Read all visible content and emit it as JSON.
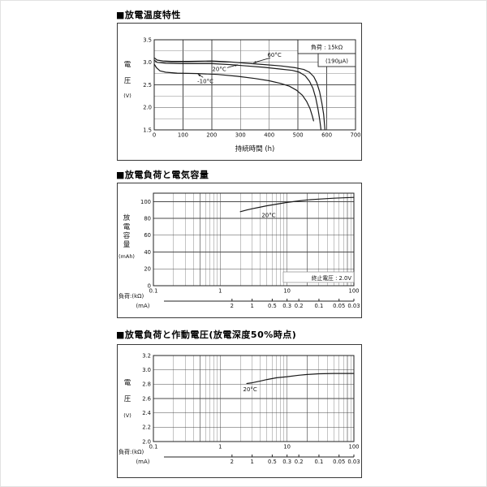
{
  "page": {
    "bg": "#ffffff",
    "line_color": "#1a1a1a",
    "grid_major_color": "#4a4a4a",
    "grid_minor_color": "#8a8a8a",
    "box_color": "#3a3a3a",
    "text_color": "#111111"
  },
  "sections": [
    {
      "heading": "■放電温度特性"
    },
    {
      "heading": "■放電負荷と電気容量"
    },
    {
      "heading": "■放電負荷と作動電圧(放電深度50%時点)"
    }
  ],
  "chart_data": [
    {
      "type": "line",
      "title": "放電温度特性",
      "xlabel": "持続時間 (h)",
      "ylabel_chars": [
        "電",
        "圧",
        "(V)"
      ],
      "x_scale": "linear",
      "xlim": [
        0,
        700
      ],
      "ylim": [
        1.5,
        3.5
      ],
      "x_ticks": [
        0,
        100,
        200,
        300,
        400,
        500,
        600,
        700
      ],
      "y_ticks": [
        3.5,
        3.0,
        2.5,
        2.0,
        1.5
      ],
      "y_minor_step": 0.25,
      "grid": "on",
      "legend_lines": [
        "負荷 : 15kΩ",
        "(190μA)"
      ],
      "series": [
        {
          "name": "60°C",
          "points": [
            [
              0,
              3.1
            ],
            [
              10,
              3.05
            ],
            [
              30,
              3.03
            ],
            [
              60,
              3.02
            ],
            [
              120,
              3.02
            ],
            [
              200,
              3.03
            ],
            [
              260,
              3.01
            ],
            [
              320,
              2.98
            ],
            [
              380,
              2.95
            ],
            [
              440,
              2.92
            ],
            [
              490,
              2.88
            ],
            [
              520,
              2.84
            ],
            [
              540,
              2.78
            ],
            [
              555,
              2.68
            ],
            [
              565,
              2.55
            ],
            [
              575,
              2.35
            ],
            [
              583,
              2.1
            ],
            [
              589,
              1.85
            ],
            [
              594,
              1.5
            ]
          ],
          "label": {
            "x": 418,
            "y": 3.17
          },
          "arrow": [
            [
              404,
              3.1
            ],
            [
              345,
              2.99
            ]
          ]
        },
        {
          "name": "20°C",
          "points": [
            [
              0,
              3.05
            ],
            [
              10,
              3.0
            ],
            [
              40,
              2.98
            ],
            [
              100,
              2.97
            ],
            [
              200,
              2.97
            ],
            [
              260,
              2.95
            ],
            [
              320,
              2.92
            ],
            [
              380,
              2.89
            ],
            [
              440,
              2.85
            ],
            [
              480,
              2.82
            ],
            [
              505,
              2.78
            ],
            [
              525,
              2.7
            ],
            [
              540,
              2.58
            ],
            [
              552,
              2.42
            ],
            [
              562,
              2.2
            ],
            [
              570,
              1.95
            ],
            [
              576,
              1.7
            ],
            [
              580,
              1.5
            ]
          ],
          "label": {
            "x": 226,
            "y": 2.85
          },
          "arrow": [
            [
              254,
              2.88
            ],
            [
              290,
              2.945
            ]
          ]
        },
        {
          "name": "-10°C",
          "points": [
            [
              0,
              2.96
            ],
            [
              8,
              2.88
            ],
            [
              20,
              2.81
            ],
            [
              40,
              2.78
            ],
            [
              80,
              2.76
            ],
            [
              150,
              2.75
            ],
            [
              220,
              2.73
            ],
            [
              290,
              2.69
            ],
            [
              350,
              2.64
            ],
            [
              400,
              2.59
            ],
            [
              440,
              2.53
            ],
            [
              470,
              2.47
            ],
            [
              495,
              2.38
            ],
            [
              515,
              2.27
            ],
            [
              530,
              2.13
            ],
            [
              542,
              1.97
            ],
            [
              550,
              1.8
            ],
            [
              554,
              1.7
            ]
          ],
          "label": {
            "x": 178,
            "y": 2.58
          },
          "arrow": [
            [
              170,
              2.665
            ],
            [
              152,
              2.735
            ]
          ]
        }
      ]
    },
    {
      "type": "line",
      "title": "放電負荷と電気容量",
      "ylabel_chars": [
        "放",
        "電",
        "容",
        "量",
        "(mAh)"
      ],
      "x_scale": "log",
      "xlim": [
        0.1,
        100
      ],
      "ylim": [
        0,
        110
      ],
      "x_ticks": [
        0.1,
        1,
        10,
        100
      ],
      "y_ticks": [
        0,
        20,
        40,
        60,
        80,
        100
      ],
      "grid": "on",
      "xlabel_left": "負荷:(kΩ)",
      "xlabel2": "(mA)",
      "ma_ticks": [
        {
          "k": 1.5,
          "label": "2"
        },
        {
          "k": 3,
          "label": "1"
        },
        {
          "k": 6,
          "label": "0.5"
        },
        {
          "k": 10,
          "label": "0.3"
        },
        {
          "k": 15,
          "label": "0.2"
        },
        {
          "k": 30,
          "label": "0.1"
        },
        {
          "k": 60,
          "label": "0.05"
        },
        {
          "k": 100,
          "label": "0.03"
        }
      ],
      "annotation": "終止電圧 : 2.0V",
      "series": [
        {
          "name": "20°C",
          "points": [
            [
              2,
              88
            ],
            [
              2.5,
              90
            ],
            [
              3,
              91.5
            ],
            [
              4,
              93.5
            ],
            [
              5,
              95
            ],
            [
              7,
              97
            ],
            [
              10,
              99
            ],
            [
              15,
              100.8
            ],
            [
              20,
              102
            ],
            [
              30,
              103
            ],
            [
              50,
              104
            ],
            [
              70,
              104.5
            ],
            [
              100,
              105
            ]
          ],
          "label": {
            "x": 5.3,
            "y": 84
          }
        }
      ]
    },
    {
      "type": "line",
      "title": "放電負荷と作動電圧(放電深度50%時点)",
      "ylabel_chars": [
        "電",
        "圧",
        "(V)"
      ],
      "x_scale": "log",
      "xlim": [
        0.1,
        100
      ],
      "ylim": [
        2.0,
        3.2
      ],
      "x_ticks": [
        0.1,
        1,
        10,
        100
      ],
      "y_ticks": [
        3.2,
        3.0,
        2.8,
        2.6,
        2.4,
        2.2,
        2.0
      ],
      "grid": "on",
      "xlabel_left": "負荷:(kΩ)",
      "xlabel2": "(mA)",
      "ma_ticks": [
        {
          "k": 1.5,
          "label": "2"
        },
        {
          "k": 3,
          "label": "1"
        },
        {
          "k": 6,
          "label": "0.5"
        },
        {
          "k": 10,
          "label": "0.3"
        },
        {
          "k": 15,
          "label": "0.2"
        },
        {
          "k": 30,
          "label": "0.1"
        },
        {
          "k": 60,
          "label": "0.05"
        },
        {
          "k": 100,
          "label": "0.03"
        }
      ],
      "series": [
        {
          "name": "20°C",
          "points": [
            [
              2.5,
              2.81
            ],
            [
              3,
              2.82
            ],
            [
              4,
              2.845
            ],
            [
              5,
              2.865
            ],
            [
              7,
              2.89
            ],
            [
              10,
              2.905
            ],
            [
              15,
              2.925
            ],
            [
              20,
              2.935
            ],
            [
              30,
              2.945
            ],
            [
              50,
              2.95
            ],
            [
              70,
              2.95
            ],
            [
              100,
              2.95
            ]
          ],
          "label": {
            "x": 2.8,
            "y": 2.73
          }
        }
      ]
    }
  ]
}
